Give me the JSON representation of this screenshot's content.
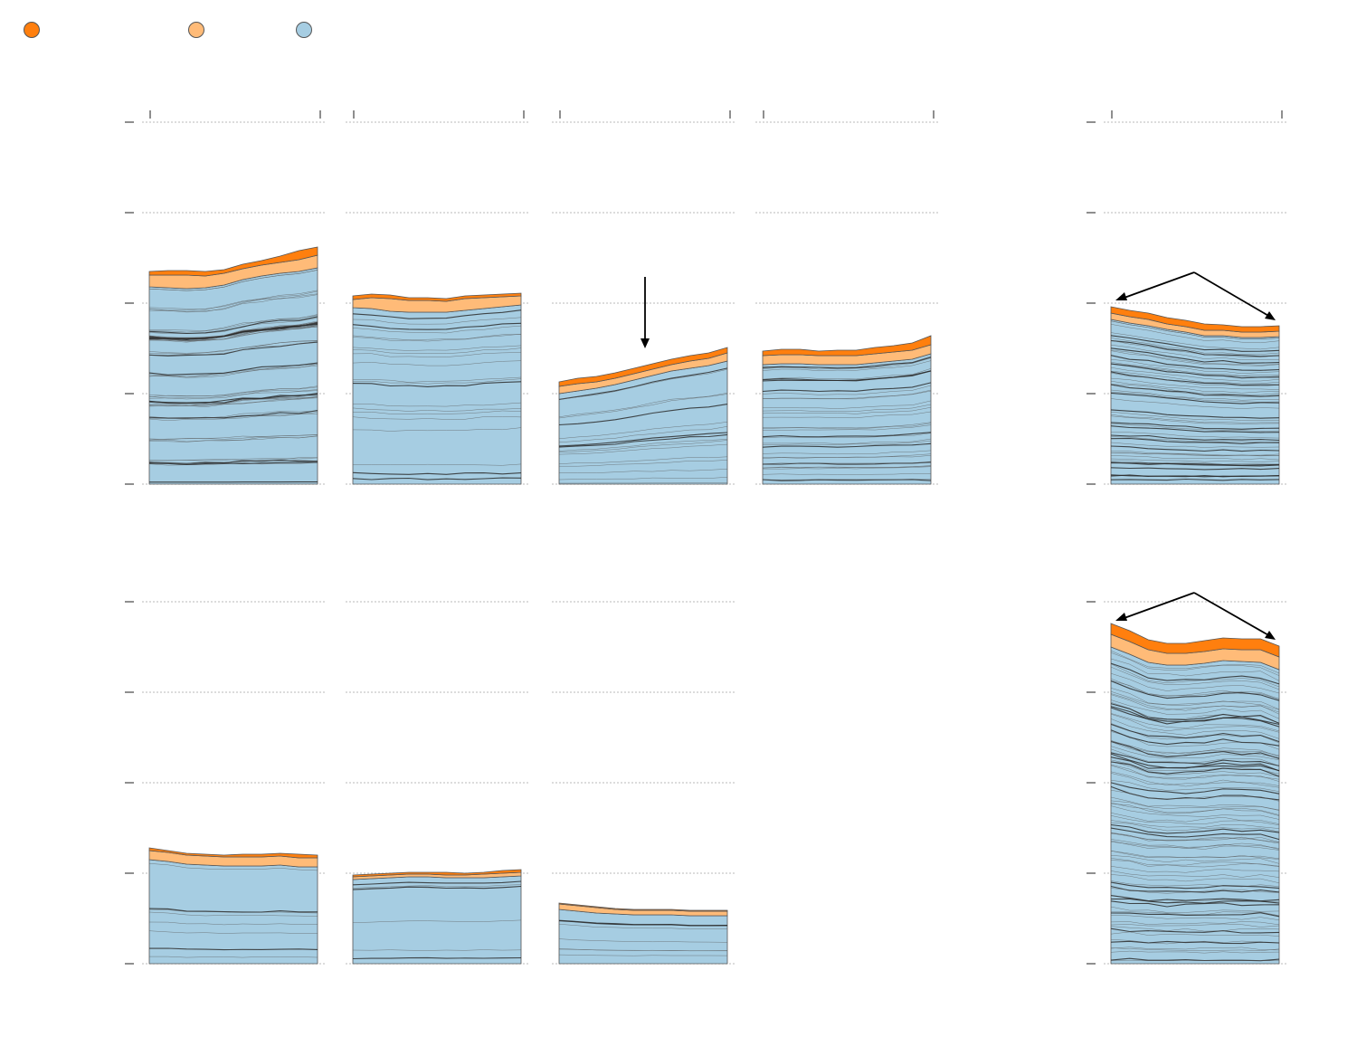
{
  "legend": {
    "items": [
      {
        "name": "",
        "color": "#ff7f0e",
        "icon": "circle-swatch"
      },
      {
        "name": "",
        "color": "#ffbb78",
        "icon": "circle-swatch"
      },
      {
        "name": "",
        "color": "#a6cde2",
        "icon": "circle-swatch"
      }
    ]
  },
  "colors": {
    "top_band": "#ff7f0e",
    "middle_band": "#ffbb78",
    "base_band": "#a6cde2",
    "division_line": "#2b2b2b",
    "grid": "#c8c8c8"
  },
  "chart_data": [
    {
      "type": "area",
      "stacked": true,
      "row": 1,
      "col": 1,
      "x": [
        0,
        1,
        2,
        3,
        4,
        5,
        6,
        7,
        8,
        9
      ],
      "series": [
        {
          "values": [
            218,
            217,
            216,
            217,
            220,
            226,
            230,
            233,
            235,
            239
          ]
        },
        {
          "values": [
            13,
            14,
            15,
            13,
            13,
            12,
            12,
            12,
            13,
            14
          ]
        },
        {
          "values": [
            4,
            5,
            5,
            5,
            4,
            5,
            5,
            7,
            10,
            9
          ]
        }
      ],
      "divisions": [
        58,
        59,
        60,
        60,
        61,
        62,
        63,
        64,
        65,
        67
      ],
      "ylim": [
        0,
        400
      ],
      "yticks": [
        0,
        100,
        200,
        300,
        400
      ],
      "grid": true
    },
    {
      "type": "area",
      "stacked": true,
      "row": 1,
      "col": 2,
      "x": [
        0,
        1,
        2,
        3,
        4,
        5,
        6,
        7,
        8,
        9
      ],
      "series": [
        {
          "values": [
            195,
            194,
            191,
            190,
            190,
            190,
            192,
            194,
            196,
            198
          ]
        },
        {
          "values": [
            9,
            12,
            14,
            13,
            13,
            12,
            13,
            12,
            11,
            10
          ]
        },
        {
          "values": [
            4,
            4,
            4,
            3,
            3,
            3,
            3,
            3,
            3,
            3
          ]
        }
      ],
      "divisions": [
        21,
        21,
        21,
        21,
        21,
        21,
        21,
        21,
        21,
        21
      ],
      "ylim": [
        0,
        400
      ],
      "yticks": [
        0,
        100,
        200,
        300,
        400
      ],
      "grid": true
    },
    {
      "type": "area",
      "stacked": true,
      "row": 1,
      "col": 3,
      "x": [
        0,
        1,
        2,
        3,
        4,
        5,
        6,
        7,
        8,
        9
      ],
      "series": [
        {
          "values": [
            100,
            103,
            106,
            110,
            115,
            120,
            125,
            128,
            131,
            136
          ]
        },
        {
          "values": [
            8,
            8,
            7,
            7,
            7,
            7,
            7,
            8,
            8,
            9
          ]
        },
        {
          "values": [
            5,
            6,
            6,
            6,
            6,
            6,
            6,
            6,
            6,
            6
          ]
        }
      ],
      "divisions": [
        17,
        17,
        17,
        18,
        18,
        19,
        20,
        22,
        24,
        26
      ],
      "ylim": [
        0,
        400
      ],
      "yticks": [
        0,
        100,
        200,
        300,
        400
      ],
      "grid": true
    },
    {
      "type": "area",
      "stacked": true,
      "row": 1,
      "col": 4,
      "x": [
        0,
        1,
        2,
        3,
        4,
        5,
        6,
        7,
        8,
        9
      ],
      "series": [
        {
          "values": [
            132,
            133,
            133,
            132,
            132,
            132,
            134,
            136,
            138,
            144
          ]
        },
        {
          "values": [
            10,
            10,
            10,
            10,
            10,
            10,
            10,
            10,
            10,
            10
          ]
        },
        {
          "values": [
            5,
            6,
            6,
            5,
            6,
            6,
            7,
            7,
            8,
            10
          ]
        }
      ],
      "divisions": [
        34,
        34,
        33,
        33,
        33,
        33,
        34,
        35,
        36,
        37
      ],
      "ylim": [
        0,
        400
      ],
      "yticks": [
        0,
        100,
        200,
        300,
        400
      ],
      "grid": true
    },
    {
      "type": "area",
      "stacked": true,
      "row": 1,
      "col": 6,
      "x": [
        0,
        1,
        2,
        3,
        4,
        5,
        6,
        7,
        8,
        9
      ],
      "series": [
        {
          "values": [
            182,
            178,
            175,
            171,
            168,
            164,
            164,
            162,
            162,
            163
          ]
        },
        {
          "values": [
            7,
            7,
            7,
            6,
            6,
            6,
            6,
            6,
            6,
            6
          ]
        },
        {
          "values": [
            7,
            7,
            7,
            7,
            7,
            7,
            6,
            6,
            6,
            6
          ]
        }
      ],
      "divisions": [
        55,
        55,
        55,
        55,
        55,
        55,
        55,
        55,
        55,
        55
      ],
      "ylim": [
        0,
        400
      ],
      "yticks": [
        0,
        100,
        200,
        300,
        400
      ],
      "grid": true
    },
    {
      "type": "area",
      "stacked": true,
      "row": 2,
      "col": 1,
      "x": [
        0,
        1,
        2,
        3,
        4,
        5,
        6,
        7,
        8,
        9
      ],
      "series": [
        {
          "values": [
            115,
            113,
            110,
            109,
            108,
            108,
            108,
            109,
            107,
            107
          ]
        },
        {
          "values": [
            10,
            10,
            10,
            10,
            10,
            10,
            10,
            10,
            10,
            10
          ]
        },
        {
          "values": [
            3,
            2,
            2,
            2,
            2,
            3,
            3,
            3,
            4,
            3
          ]
        }
      ],
      "divisions": [
        8,
        8,
        8,
        8,
        8,
        8,
        8,
        8,
        8,
        8
      ],
      "ylim": [
        0,
        400
      ],
      "yticks": [
        0,
        100,
        200,
        300,
        400
      ],
      "grid": true
    },
    {
      "type": "area",
      "stacked": true,
      "row": 2,
      "col": 2,
      "x": [
        0,
        1,
        2,
        3,
        4,
        5,
        6,
        7,
        8,
        9
      ],
      "series": [
        {
          "values": [
            93,
            94,
            95,
            96,
            96,
            95,
            95,
            95,
            96,
            97
          ]
        },
        {
          "values": [
            3,
            3,
            3,
            3,
            3,
            3,
            3,
            4,
            4,
            4
          ]
        },
        {
          "values": [
            2,
            2,
            2,
            2,
            2,
            3,
            2,
            2,
            3,
            3
          ]
        }
      ],
      "divisions": [
        7,
        7,
        7,
        7,
        7,
        7,
        7,
        7,
        7,
        7
      ],
      "ylim": [
        0,
        400
      ],
      "yticks": [
        0,
        100,
        200,
        300,
        400
      ],
      "grid": true
    },
    {
      "type": "area",
      "stacked": true,
      "row": 2,
      "col": 3,
      "x": [
        0,
        1,
        2,
        3,
        4,
        5,
        6,
        7,
        8,
        9
      ],
      "series": [
        {
          "values": [
            60,
            58,
            56,
            55,
            54,
            54,
            54,
            53,
            53,
            53
          ]
        },
        {
          "values": [
            6,
            6,
            6,
            5,
            5,
            5,
            5,
            5,
            5,
            5
          ]
        },
        {
          "values": [
            1,
            1,
            1,
            1,
            1,
            1,
            1,
            1,
            1,
            1
          ]
        }
      ],
      "divisions": [
        7,
        7,
        7,
        7,
        7,
        7,
        7,
        7,
        7,
        7
      ],
      "ylim": [
        0,
        400
      ],
      "yticks": [
        0,
        100,
        200,
        300,
        400
      ],
      "grid": true
    },
    {
      "type": "area",
      "stacked": true,
      "row": 2,
      "col": 6,
      "x": [
        0,
        1,
        2,
        3,
        4,
        5,
        6,
        7,
        8,
        9
      ],
      "series": [
        {
          "values": [
            350,
            342,
            333,
            330,
            330,
            332,
            335,
            334,
            333,
            325
          ]
        },
        {
          "values": [
            14,
            14,
            14,
            13,
            13,
            13,
            13,
            13,
            14,
            14
          ]
        },
        {
          "values": [
            12,
            12,
            11,
            11,
            11,
            12,
            12,
            12,
            12,
            12
          ]
        }
      ],
      "divisions": [
        95,
        95,
        95,
        95,
        95,
        95,
        95,
        95,
        95,
        95
      ],
      "ylim": [
        0,
        400
      ],
      "yticks": [
        0,
        100,
        200,
        300,
        400
      ],
      "grid": true
    }
  ]
}
